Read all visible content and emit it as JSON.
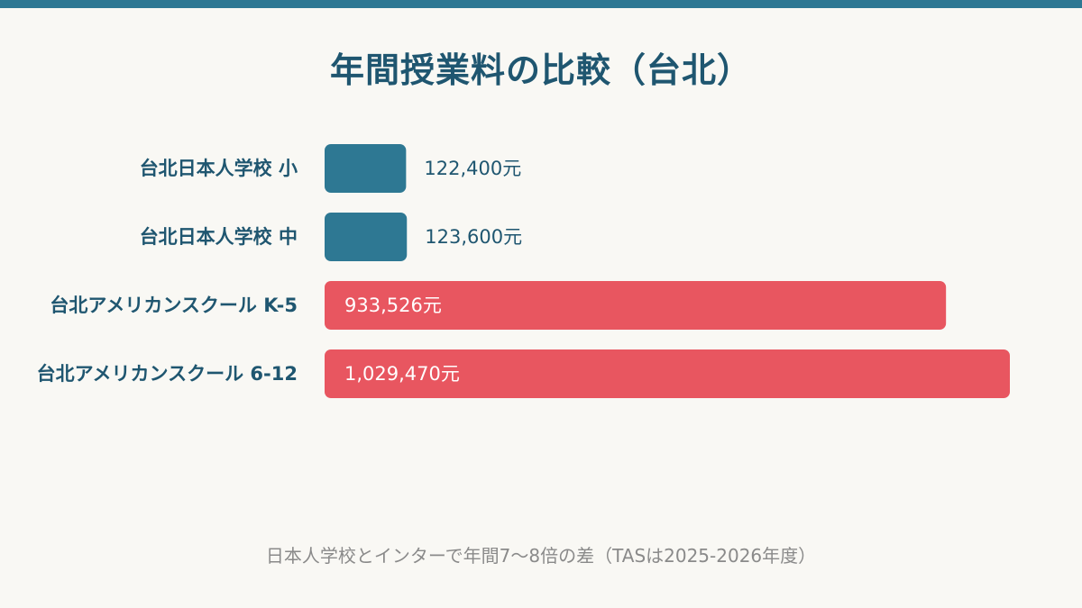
{
  "colors": {
    "top_bar": "#2e7893",
    "background": "#f9f8f4",
    "title": "#1f5670",
    "category_label": "#1f5670",
    "value_label_outside": "#1f5670",
    "value_label_inside": "#ffffff",
    "footnote": "#8a8a8a",
    "japanese_school": "#2e7893",
    "american_school": "#e85660"
  },
  "chart_data": {
    "type": "bar",
    "orientation": "horizontal",
    "title": "年間授業料の比較（台北）",
    "categories": [
      "台北日本人学校 小",
      "台北日本人学校 中",
      "台北アメリカンスクール K-5",
      "台北アメリカンスクール  6-12"
    ],
    "values": [
      122400,
      123600,
      933526,
      1029470
    ],
    "value_labels": [
      "122,400元",
      "123,600元",
      "933,526元",
      "1,029,470元"
    ],
    "bar_colors": [
      "#2e7893",
      "#2e7893",
      "#e85660",
      "#e85660"
    ],
    "label_position": [
      "outside",
      "outside",
      "inside",
      "inside"
    ],
    "xlim": [
      0,
      1029470
    ],
    "grid": false,
    "legend": false
  },
  "footnote": "日本人学校とインターで年間7〜8倍の差（TASは2025-2026年度）"
}
